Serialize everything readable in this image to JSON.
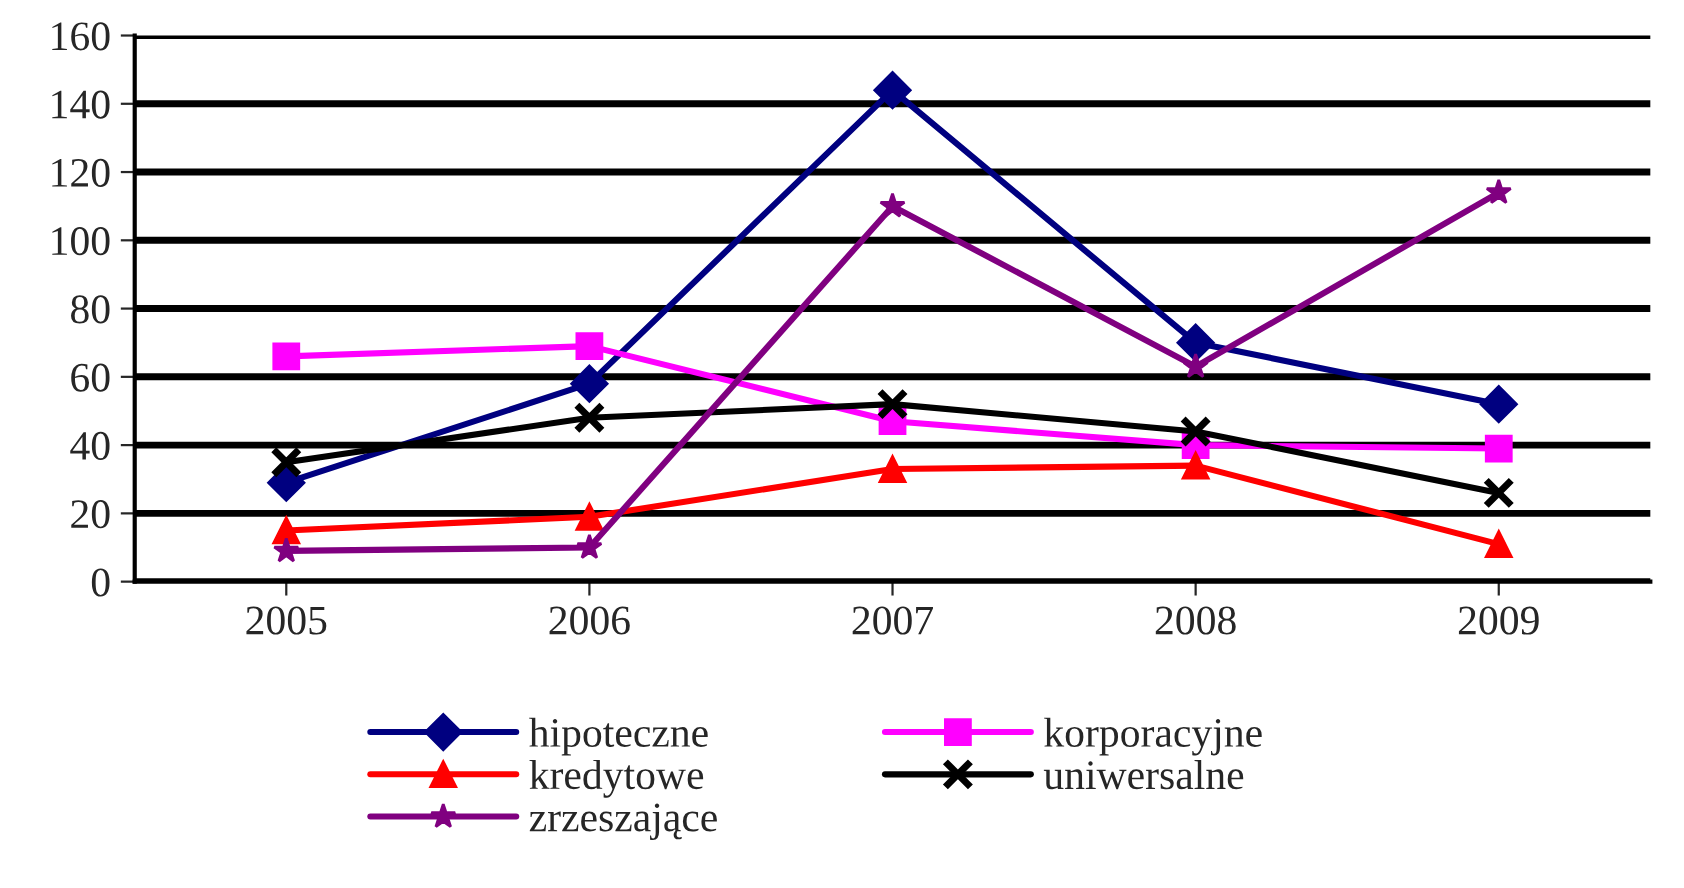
{
  "chart_data": {
    "type": "line",
    "categories": [
      "2005",
      "2006",
      "2007",
      "2008",
      "2009"
    ],
    "series": [
      {
        "name": "hipoteczne",
        "color": "#000080",
        "marker": "diamond",
        "values": [
          29,
          58,
          144,
          70,
          52
        ]
      },
      {
        "name": "korporacyjne",
        "color": "#ff00ff",
        "marker": "square",
        "values": [
          66,
          69,
          47,
          40,
          39
        ]
      },
      {
        "name": "kredytowe",
        "color": "#ff0000",
        "marker": "triangle",
        "values": [
          15,
          19,
          33,
          34,
          11
        ]
      },
      {
        "name": "uniwersalne",
        "color": "#000000",
        "marker": "cross",
        "values": [
          35,
          48,
          52,
          44,
          26
        ]
      },
      {
        "name": "zrzeszające",
        "color": "#800080",
        "marker": "star",
        "values": [
          9,
          10,
          110,
          63,
          114
        ]
      }
    ],
    "ylim": [
      0,
      160
    ],
    "yticks": [
      0,
      20,
      40,
      60,
      80,
      100,
      120,
      140,
      160
    ],
    "grid": "y",
    "legend": "bottom"
  }
}
